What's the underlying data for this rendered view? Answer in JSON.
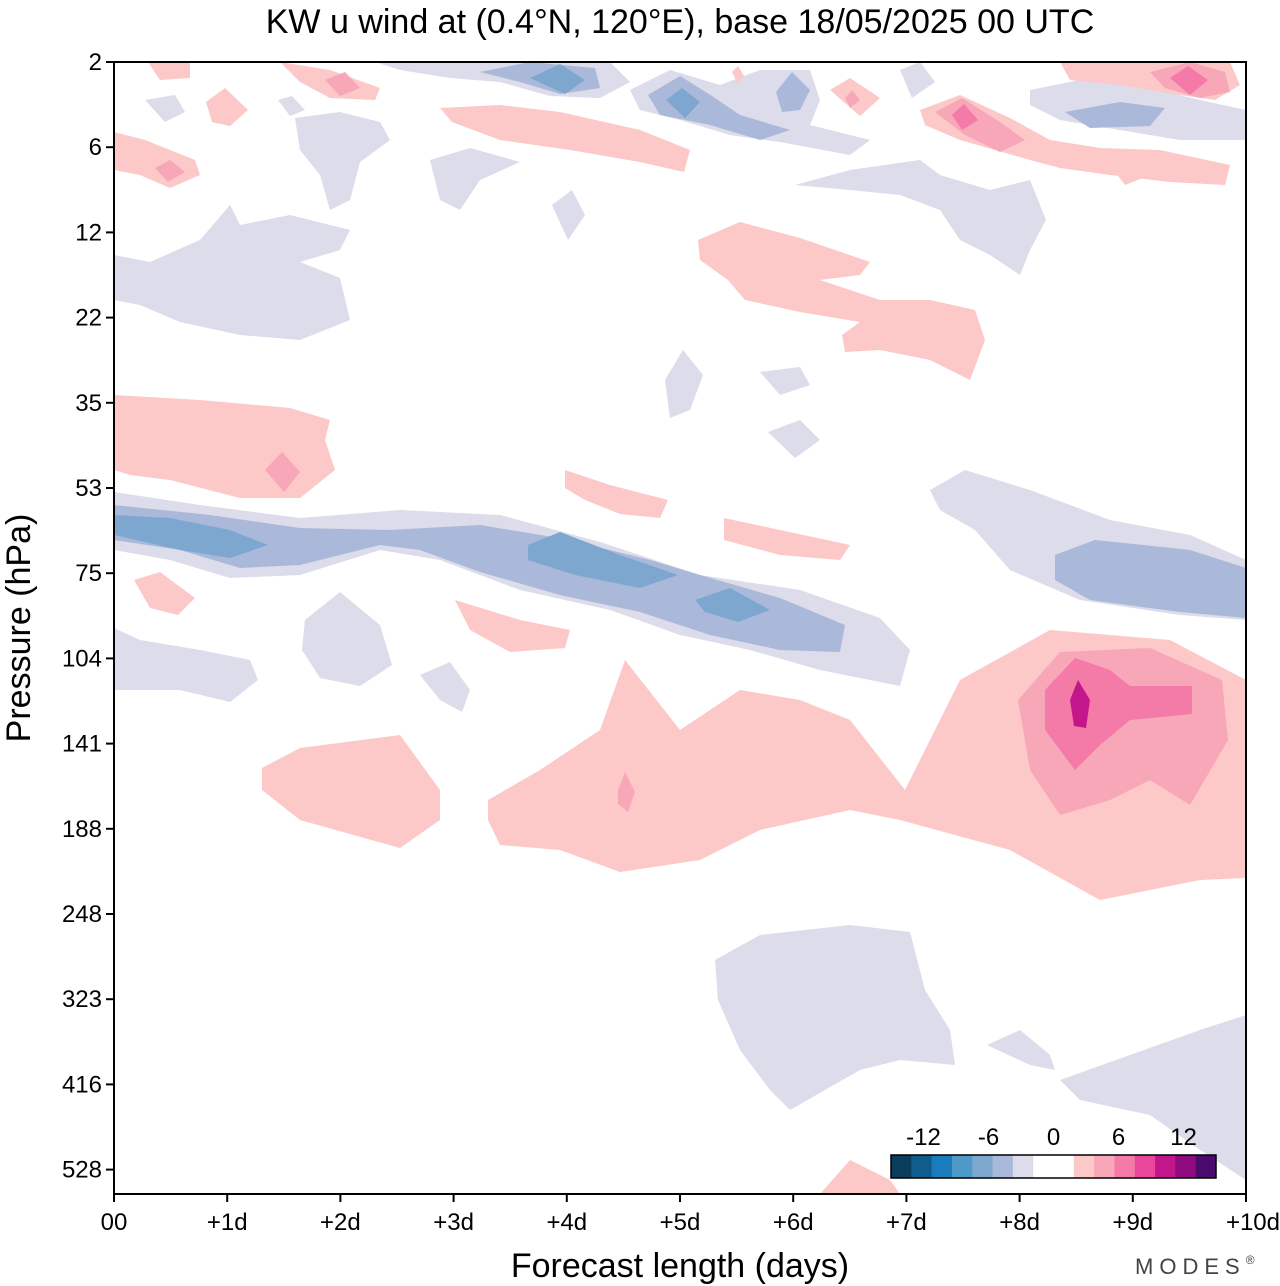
{
  "chart_data": {
    "type": "heatmap",
    "title": "KW u wind at (0.4°N, 120°E),  base 18/05/2025  00 UTC",
    "xlabel": "Forecast length (days)",
    "ylabel": "Pressure (hPa)",
    "x_ticks": [
      "00",
      "+1d",
      "+2d",
      "+3d",
      "+4d",
      "+5d",
      "+6d",
      "+7d",
      "+8d",
      "+9d",
      "+10d"
    ],
    "xlim": [
      0,
      10
    ],
    "y_ticks": [
      "2",
      "6",
      "12",
      "22",
      "35",
      "53",
      "75",
      "104",
      "141",
      "188",
      "248",
      "323",
      "416",
      "528"
    ],
    "y_scale": "categorical-levels",
    "colorbar": {
      "labels": [
        "-12",
        "-6",
        "0",
        "6",
        "12"
      ],
      "levels": [
        -15,
        -13.5,
        -12,
        -10.5,
        -9,
        -7.5,
        -6,
        -4.5,
        -3,
        -1.5,
        0,
        1.5,
        3,
        4.5,
        6,
        7.5,
        9,
        10.5,
        12,
        13.5,
        15
      ],
      "colors": [
        "#0b3d5c",
        "#0f5d8d",
        "#1a7cba",
        "#4f99c8",
        "#7ea7d0",
        "#aab8d9",
        "#dcdcea",
        "#ffffff",
        "#ffffff",
        "#fcc8c8",
        "#f8a7b8",
        "#f47aa8",
        "#e8479a",
        "#c2168a",
        "#8e0a7e",
        "#4b0a6e"
      ]
    },
    "features": [
      {
        "name": "negative band near 53-75 hPa",
        "x": [
          0,
          6.5
        ],
        "y": [
          "53",
          "104"
        ],
        "sign": "negative",
        "peak": -8
      },
      {
        "name": "negative band 75 hPa days 8-10",
        "x": [
          7.3,
          10
        ],
        "y": [
          "53",
          "104"
        ],
        "sign": "negative",
        "peak": -5
      },
      {
        "name": "positive region 104-248 hPa",
        "x": [
          1.3,
          10
        ],
        "y": [
          "104",
          "248"
        ],
        "sign": "positive",
        "peak": 10
      },
      {
        "name": "strong positive max near +8.5d 120 hPa",
        "x": [
          8.3,
          9.6
        ],
        "y": [
          "104",
          "141"
        ],
        "sign": "positive",
        "peak": 12
      },
      {
        "name": "positive region 35-53 hPa early",
        "x": [
          0,
          2
        ],
        "y": [
          "35",
          "53"
        ],
        "sign": "positive",
        "peak": 5
      },
      {
        "name": "negative region 12-22 hPa early",
        "x": [
          0,
          2.1
        ],
        "y": [
          "12",
          "22"
        ],
        "sign": "negative",
        "peak": -3
      },
      {
        "name": "positive region 12-35 hPa days 5-8",
        "x": [
          5.3,
          7.8
        ],
        "y": [
          "12",
          "35"
        ],
        "sign": "positive",
        "peak": 3
      },
      {
        "name": "negative region 248-416 hPa",
        "x": [
          5.3,
          7.2
        ],
        "y": [
          "248",
          "416"
        ],
        "sign": "negative",
        "peak": -2
      },
      {
        "name": "stratospheric 2-6 hPa mixed",
        "x": [
          0,
          10
        ],
        "y": [
          "2",
          "6"
        ],
        "sign": "mixed",
        "peak": 9
      }
    ]
  },
  "branding": {
    "text": "MODES",
    "mark": "®"
  }
}
